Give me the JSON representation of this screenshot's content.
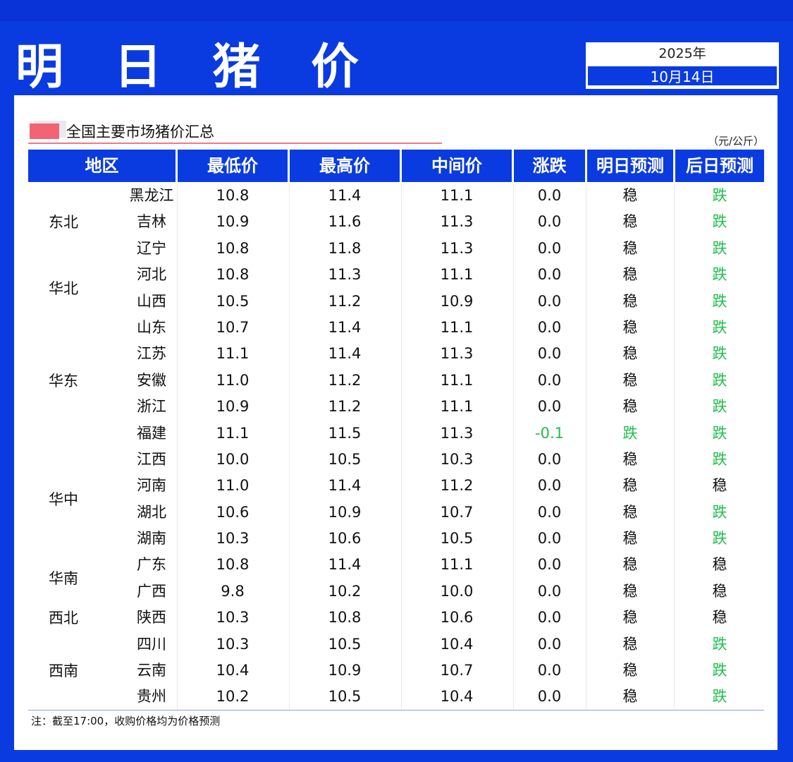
{
  "header": {
    "title": "明 日 猪 价",
    "year": "2025年",
    "date": "10月14日"
  },
  "section": {
    "title": "全国主要市场猪价汇总",
    "unit": "（元/公斤）"
  },
  "columns": [
    "地区",
    "最低价",
    "最高价",
    "中间价",
    "涨跌",
    "明日预测",
    "后日预测"
  ],
  "regions": [
    {
      "name": "东北",
      "start": 0,
      "span": 3
    },
    {
      "name": "华北",
      "start": 3,
      "span": 2
    },
    {
      "name": "华东",
      "start": 5,
      "span": 5
    },
    {
      "name": "华中",
      "start": 10,
      "span": 4
    },
    {
      "name": "华南",
      "start": 14,
      "span": 2
    },
    {
      "name": "西北",
      "start": 16,
      "span": 1
    },
    {
      "name": "西南",
      "start": 17,
      "span": 3
    }
  ],
  "rows": [
    {
      "province": "黑龙江",
      "low": "10.8",
      "high": "11.4",
      "mid": "11.1",
      "change": "0.0",
      "tomorrow": "稳",
      "after": "跌"
    },
    {
      "province": "吉林",
      "low": "10.9",
      "high": "11.6",
      "mid": "11.3",
      "change": "0.0",
      "tomorrow": "稳",
      "after": "跌"
    },
    {
      "province": "辽宁",
      "low": "10.8",
      "high": "11.8",
      "mid": "11.3",
      "change": "0.0",
      "tomorrow": "稳",
      "after": "跌"
    },
    {
      "province": "河北",
      "low": "10.8",
      "high": "11.3",
      "mid": "11.1",
      "change": "0.0",
      "tomorrow": "稳",
      "after": "跌"
    },
    {
      "province": "山西",
      "low": "10.5",
      "high": "11.2",
      "mid": "10.9",
      "change": "0.0",
      "tomorrow": "稳",
      "after": "跌"
    },
    {
      "province": "山东",
      "low": "10.7",
      "high": "11.4",
      "mid": "11.1",
      "change": "0.0",
      "tomorrow": "稳",
      "after": "跌"
    },
    {
      "province": "江苏",
      "low": "11.1",
      "high": "11.4",
      "mid": "11.3",
      "change": "0.0",
      "tomorrow": "稳",
      "after": "跌"
    },
    {
      "province": "安徽",
      "low": "11.0",
      "high": "11.2",
      "mid": "11.1",
      "change": "0.0",
      "tomorrow": "稳",
      "after": "跌"
    },
    {
      "province": "浙江",
      "low": "10.9",
      "high": "11.2",
      "mid": "11.1",
      "change": "0.0",
      "tomorrow": "稳",
      "after": "跌"
    },
    {
      "province": "福建",
      "low": "11.1",
      "high": "11.5",
      "mid": "11.3",
      "change": "-0.1",
      "tomorrow": "跌",
      "after": "跌"
    },
    {
      "province": "江西",
      "low": "10.0",
      "high": "10.5",
      "mid": "10.3",
      "change": "0.0",
      "tomorrow": "稳",
      "after": "跌"
    },
    {
      "province": "河南",
      "low": "11.0",
      "high": "11.4",
      "mid": "11.2",
      "change": "0.0",
      "tomorrow": "稳",
      "after": "稳"
    },
    {
      "province": "湖北",
      "low": "10.6",
      "high": "10.9",
      "mid": "10.7",
      "change": "0.0",
      "tomorrow": "稳",
      "after": "跌"
    },
    {
      "province": "湖南",
      "low": "10.3",
      "high": "10.6",
      "mid": "10.5",
      "change": "0.0",
      "tomorrow": "稳",
      "after": "跌"
    },
    {
      "province": "广东",
      "low": "10.8",
      "high": "11.4",
      "mid": "11.1",
      "change": "0.0",
      "tomorrow": "稳",
      "after": "稳"
    },
    {
      "province": "广西",
      "low": "9.8",
      "high": "10.2",
      "mid": "10.0",
      "change": "0.0",
      "tomorrow": "稳",
      "after": "稳"
    },
    {
      "province": "陕西",
      "low": "10.3",
      "high": "10.8",
      "mid": "10.6",
      "change": "0.0",
      "tomorrow": "稳",
      "after": "稳"
    },
    {
      "province": "四川",
      "low": "10.3",
      "high": "10.5",
      "mid": "10.4",
      "change": "0.0",
      "tomorrow": "稳",
      "after": "跌"
    },
    {
      "province": "云南",
      "low": "10.4",
      "high": "10.9",
      "mid": "10.7",
      "change": "0.0",
      "tomorrow": "稳",
      "after": "跌"
    },
    {
      "province": "贵州",
      "low": "10.2",
      "high": "10.5",
      "mid": "10.4",
      "change": "0.0",
      "tomorrow": "稳",
      "after": "跌"
    }
  ],
  "note": "注：截至17:00，收购价格均为价格预测",
  "colors": {
    "brand_blue": "#0a3be0",
    "fall_green": "#1fbf4a",
    "accent_red": "#f26473"
  }
}
